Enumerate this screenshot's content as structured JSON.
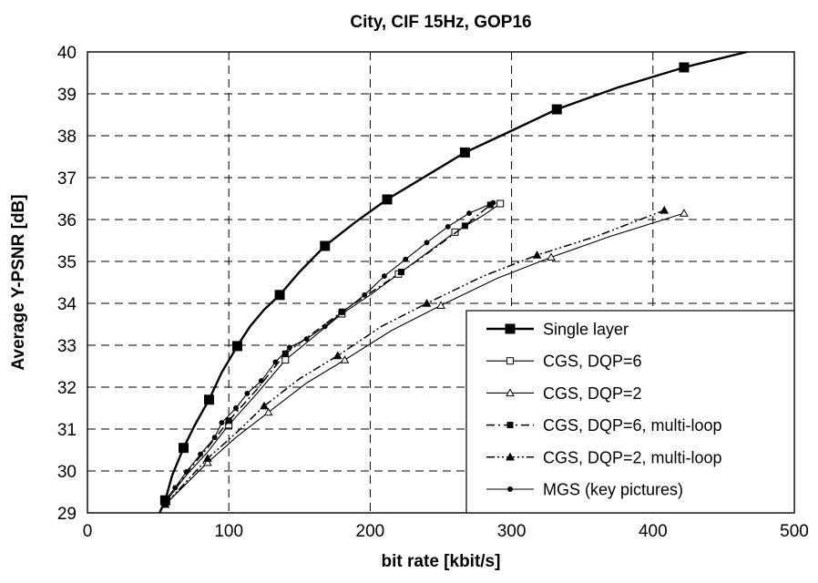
{
  "chart_data": {
    "type": "line",
    "title": "City, CIF 15Hz, GOP16",
    "xlabel": "bit rate [kbit/s]",
    "ylabel": "Average Y-PSNR [dB]",
    "xlim": [
      0,
      500
    ],
    "ylim": [
      29,
      40
    ],
    "x_ticks": [
      0,
      100,
      200,
      300,
      400,
      500
    ],
    "y_ticks": [
      29,
      30,
      31,
      32,
      33,
      34,
      35,
      36,
      37,
      38,
      39,
      40
    ],
    "grid": true,
    "legend_position": "bottom-right",
    "series": [
      {
        "name": "Single layer",
        "line": "solid",
        "width": 2.4,
        "marker": "square-filled",
        "marker_size": 10,
        "line_points": [
          [
            51,
            29.0
          ],
          [
            55,
            29.3
          ],
          [
            60,
            29.9
          ],
          [
            68,
            30.55
          ],
          [
            76,
            31.1
          ],
          [
            86,
            31.7
          ],
          [
            95,
            32.35
          ],
          [
            106,
            32.98
          ],
          [
            115,
            33.45
          ],
          [
            125,
            33.85
          ],
          [
            136,
            34.2
          ],
          [
            150,
            34.75
          ],
          [
            168,
            35.37
          ],
          [
            190,
            35.95
          ],
          [
            212,
            36.48
          ],
          [
            240,
            37.05
          ],
          [
            267,
            37.6
          ],
          [
            300,
            38.12
          ],
          [
            332,
            38.63
          ],
          [
            375,
            39.15
          ],
          [
            422,
            39.63
          ],
          [
            470,
            40.03
          ],
          [
            478,
            40.1
          ]
        ],
        "points": [
          [
            55,
            29.3
          ],
          [
            68,
            30.55
          ],
          [
            86,
            31.7
          ],
          [
            106,
            32.98
          ],
          [
            136,
            34.2
          ],
          [
            168,
            35.37
          ],
          [
            212,
            36.48
          ],
          [
            267,
            37.6
          ],
          [
            332,
            38.63
          ],
          [
            422,
            39.63
          ]
        ]
      },
      {
        "name": "CGS, DQP=6",
        "line": "solid",
        "width": 1.1,
        "marker": "square-open",
        "marker_size": 7,
        "line_points": [
          [
            55,
            29.25
          ],
          [
            70,
            29.9
          ],
          [
            85,
            30.45
          ],
          [
            100,
            31.1
          ],
          [
            120,
            31.85
          ],
          [
            140,
            32.65
          ],
          [
            160,
            33.2
          ],
          [
            180,
            33.75
          ],
          [
            200,
            34.2
          ],
          [
            220,
            34.7
          ],
          [
            240,
            35.2
          ],
          [
            260,
            35.7
          ],
          [
            280,
            36.1
          ],
          [
            292,
            36.38
          ]
        ],
        "points": [
          [
            55,
            29.25
          ],
          [
            100,
            31.1
          ],
          [
            140,
            32.65
          ],
          [
            180,
            33.75
          ],
          [
            220,
            34.7
          ],
          [
            260,
            35.7
          ],
          [
            292,
            36.38
          ]
        ]
      },
      {
        "name": "CGS, DQP=2",
        "line": "solid",
        "width": 1.1,
        "marker": "triangle-open",
        "marker_size": 8,
        "line_points": [
          [
            55,
            29.2
          ],
          [
            70,
            29.7
          ],
          [
            85,
            30.2
          ],
          [
            105,
            30.8
          ],
          [
            128,
            31.4
          ],
          [
            155,
            32.1
          ],
          [
            182,
            32.65
          ],
          [
            215,
            33.35
          ],
          [
            250,
            33.95
          ],
          [
            290,
            34.6
          ],
          [
            328,
            35.1
          ],
          [
            370,
            35.6
          ],
          [
            422,
            36.15
          ]
        ],
        "points": [
          [
            55,
            29.2
          ],
          [
            85,
            30.2
          ],
          [
            128,
            31.4
          ],
          [
            182,
            32.65
          ],
          [
            250,
            33.95
          ],
          [
            328,
            35.1
          ],
          [
            422,
            36.15
          ]
        ]
      },
      {
        "name": "CGS, DQP=6, multi-loop",
        "line": "dash-dot",
        "width": 1.5,
        "marker": "square-filled",
        "marker_size": 6,
        "line_points": [
          [
            55,
            29.25
          ],
          [
            70,
            29.95
          ],
          [
            85,
            30.55
          ],
          [
            100,
            31.2
          ],
          [
            120,
            31.95
          ],
          [
            140,
            32.8
          ],
          [
            160,
            33.3
          ],
          [
            180,
            33.8
          ],
          [
            200,
            34.25
          ],
          [
            222,
            34.75
          ],
          [
            245,
            35.3
          ],
          [
            267,
            35.85
          ],
          [
            285,
            36.35
          ]
        ],
        "points": [
          [
            55,
            29.25
          ],
          [
            100,
            31.2
          ],
          [
            140,
            32.8
          ],
          [
            180,
            33.8
          ],
          [
            222,
            34.75
          ],
          [
            267,
            35.85
          ],
          [
            285,
            36.35
          ]
        ]
      },
      {
        "name": "CGS, DQP=2, multi-loop",
        "line": "dash-dot-dot",
        "width": 1.5,
        "marker": "triangle-filled",
        "marker_size": 8,
        "line_points": [
          [
            55,
            29.2
          ],
          [
            70,
            29.75
          ],
          [
            85,
            30.3
          ],
          [
            105,
            30.9
          ],
          [
            125,
            31.55
          ],
          [
            150,
            32.2
          ],
          [
            177,
            32.75
          ],
          [
            208,
            33.45
          ],
          [
            240,
            34.0
          ],
          [
            280,
            34.65
          ],
          [
            318,
            35.15
          ],
          [
            360,
            35.6
          ],
          [
            408,
            36.22
          ]
        ],
        "points": [
          [
            55,
            29.2
          ],
          [
            85,
            30.3
          ],
          [
            125,
            31.55
          ],
          [
            177,
            32.75
          ],
          [
            240,
            34.0
          ],
          [
            318,
            35.15
          ],
          [
            408,
            36.22
          ]
        ]
      },
      {
        "name": "MGS (key pictures)",
        "line": "solid",
        "width": 1.1,
        "marker": "circle-filled",
        "marker_size": 7,
        "line_points": [
          [
            55,
            29.3
          ],
          [
            62,
            29.6
          ],
          [
            70,
            29.98
          ],
          [
            80,
            30.4
          ],
          [
            90,
            30.8
          ],
          [
            95,
            31.15
          ],
          [
            105,
            31.5
          ],
          [
            113,
            31.85
          ],
          [
            123,
            32.15
          ],
          [
            133,
            32.6
          ],
          [
            143,
            32.95
          ],
          [
            155,
            33.15
          ],
          [
            168,
            33.45
          ],
          [
            180,
            33.78
          ],
          [
            196,
            34.2
          ],
          [
            210,
            34.65
          ],
          [
            225,
            35.05
          ],
          [
            240,
            35.45
          ],
          [
            255,
            35.83
          ],
          [
            270,
            36.15
          ],
          [
            287,
            36.4
          ]
        ],
        "points": [
          [
            55,
            29.3
          ],
          [
            62,
            29.6
          ],
          [
            70,
            29.98
          ],
          [
            80,
            30.4
          ],
          [
            90,
            30.8
          ],
          [
            95,
            31.15
          ],
          [
            105,
            31.5
          ],
          [
            113,
            31.85
          ],
          [
            123,
            32.15
          ],
          [
            133,
            32.6
          ],
          [
            143,
            32.95
          ],
          [
            155,
            33.15
          ],
          [
            168,
            33.45
          ],
          [
            180,
            33.78
          ],
          [
            196,
            34.2
          ],
          [
            210,
            34.65
          ],
          [
            225,
            35.05
          ],
          [
            240,
            35.45
          ],
          [
            255,
            35.83
          ],
          [
            270,
            36.15
          ],
          [
            287,
            36.4
          ]
        ]
      }
    ]
  }
}
